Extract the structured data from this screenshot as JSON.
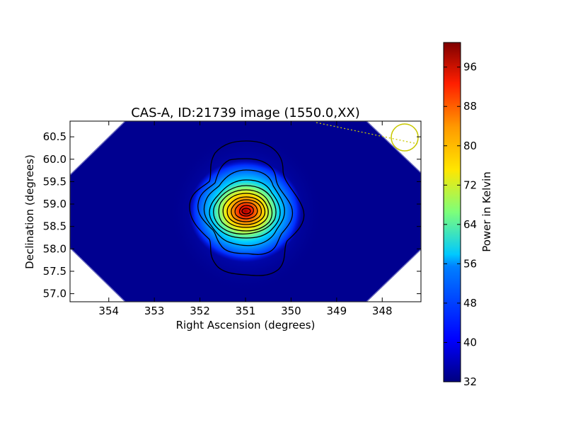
{
  "chart_data": {
    "type": "heatmap",
    "title": "CAS-A, ID:21739 image (1550.0,XX)",
    "xlabel": "Right Ascension (degrees)",
    "ylabel": "Declination (degrees)",
    "xlim": [
      354.85,
      347.15
    ],
    "ylim": [
      56.82,
      60.85
    ],
    "x_ticks": [
      354,
      353,
      352,
      351,
      350,
      349,
      348
    ],
    "y_ticks": [
      57.0,
      57.5,
      58.0,
      58.5,
      59.0,
      59.5,
      60.0,
      60.5
    ],
    "y_tick_labels": [
      "57.0",
      "57.5",
      "58.0",
      "58.5",
      "59.0",
      "59.5",
      "60.0",
      "60.5"
    ],
    "source_peak": {
      "ra": 350.85,
      "dec": 58.82
    },
    "colormap": "jet",
    "colorbar": {
      "label": "Power in Kelvin",
      "min": 32,
      "max": 101,
      "ticks": [
        32,
        40,
        48,
        56,
        64,
        72,
        80,
        88,
        96
      ]
    },
    "beam_marker": {
      "ra": 347.45,
      "dec": 60.45
    },
    "grid": false
  }
}
